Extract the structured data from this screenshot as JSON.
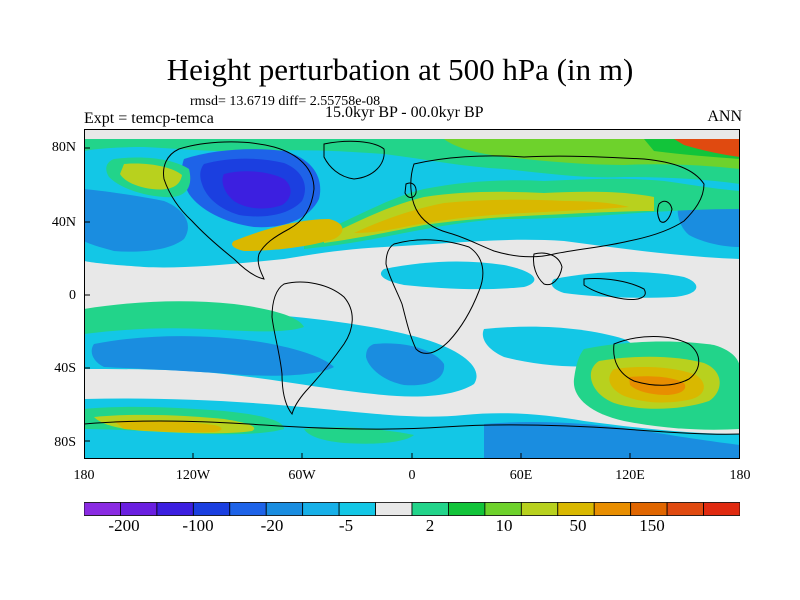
{
  "title": "Height perturbation at 500 hPa (in m)",
  "stats": "rmsd= 13.6719 diff= 2.55758e-08",
  "left_label": "Expt = temcp-temca",
  "center_label": "15.0kyr BP - 00.0kyr BP",
  "right_label": "ANN",
  "lat_ticks": [
    "80N",
    "40N",
    "0",
    "40S",
    "80S"
  ],
  "lon_ticks": [
    "180",
    "120W",
    "60W",
    "0",
    "60E",
    "120E",
    "180"
  ],
  "colorbar": {
    "colors": [
      "#8a2be2",
      "#6a1fe0",
      "#3c1fe0",
      "#1b3fe0",
      "#1e63e8",
      "#1a8de0",
      "#17b0e8",
      "#13c7e6",
      "#e8e8e8",
      "#22d48a",
      "#12c43a",
      "#6ed22c",
      "#b8d11e",
      "#d9b800",
      "#e88e00",
      "#e06600",
      "#e04a10",
      "#e02a10"
    ],
    "labels": [
      "-200",
      "-100",
      "-20",
      "-5",
      "2",
      "10",
      "50",
      "150"
    ]
  }
}
